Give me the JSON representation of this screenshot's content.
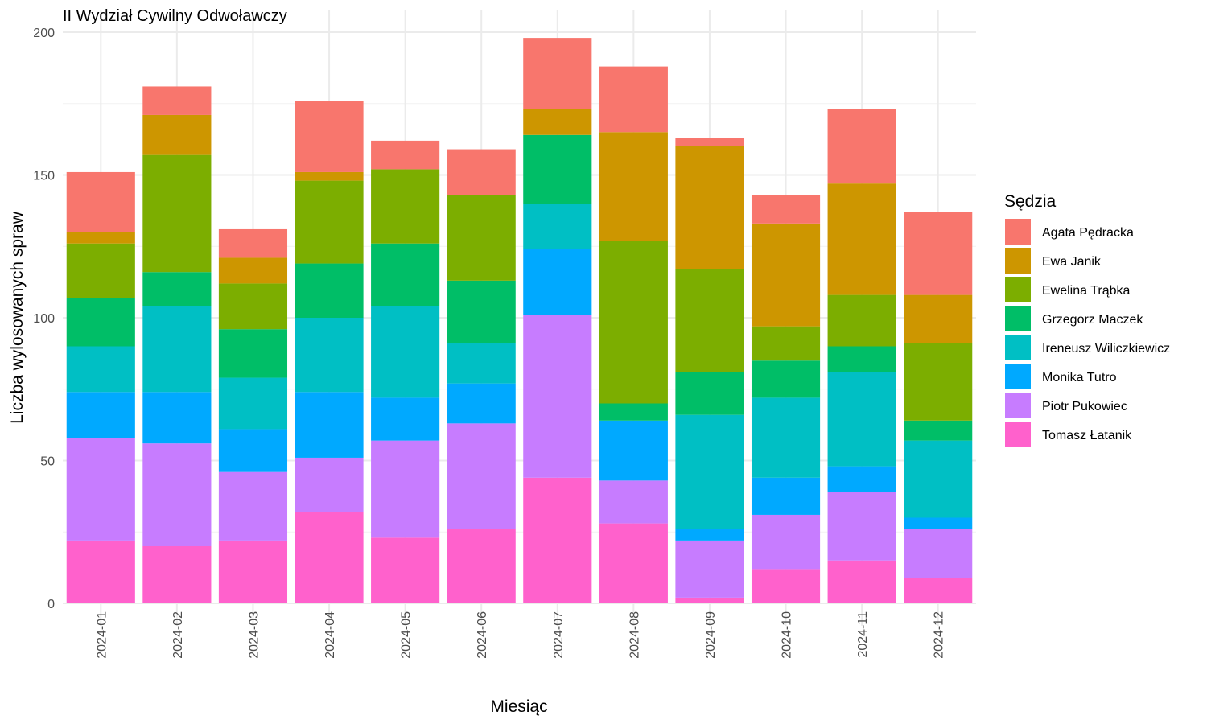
{
  "chart_data": {
    "type": "bar",
    "stacked": true,
    "title": "II Wydział Cywilny Odwoławczy",
    "xlabel": "Miesiąc",
    "ylabel": "Liczba wylosowanych spraw",
    "ylim": [
      0,
      200
    ],
    "yticks": [
      0,
      50,
      100,
      150,
      200
    ],
    "grid": true,
    "legend_title": "Sędzia",
    "legend_position": "right",
    "categories": [
      "2024-01",
      "2024-02",
      "2024-03",
      "2024-04",
      "2024-05",
      "2024-06",
      "2024-07",
      "2024-08",
      "2024-09",
      "2024-10",
      "2024-11",
      "2024-12"
    ],
    "series": [
      {
        "name": "Tomasz Łatanik",
        "color": "#FF61CC",
        "values": [
          22,
          20,
          22,
          32,
          23,
          26,
          44,
          28,
          2,
          12,
          15,
          9
        ]
      },
      {
        "name": "Piotr Pukowiec",
        "color": "#C77CFF",
        "values": [
          36,
          36,
          24,
          19,
          34,
          37,
          57,
          15,
          20,
          19,
          24,
          17
        ]
      },
      {
        "name": "Monika Tutro",
        "color": "#00A9FF",
        "values": [
          16,
          18,
          15,
          23,
          15,
          14,
          23,
          21,
          4,
          13,
          9,
          4
        ]
      },
      {
        "name": "Ireneusz Wiliczkiewicz",
        "color": "#00BFC4",
        "values": [
          16,
          30,
          18,
          26,
          32,
          14,
          16,
          0,
          40,
          28,
          33,
          27
        ]
      },
      {
        "name": "Grzegorz Maczek",
        "color": "#00BE67",
        "values": [
          17,
          12,
          17,
          19,
          22,
          22,
          24,
          6,
          15,
          13,
          9,
          7
        ]
      },
      {
        "name": "Ewelina Trąbka",
        "color": "#7CAE00",
        "values": [
          19,
          41,
          16,
          29,
          26,
          30,
          0,
          57,
          36,
          12,
          18,
          27
        ]
      },
      {
        "name": "Ewa Janik",
        "color": "#CD9600",
        "values": [
          4,
          14,
          9,
          3,
          0,
          0,
          9,
          38,
          43,
          36,
          39,
          17
        ]
      },
      {
        "name": "Agata Pędracka",
        "color": "#F8766D",
        "values": [
          21,
          10,
          10,
          25,
          10,
          16,
          25,
          23,
          3,
          10,
          26,
          29
        ]
      }
    ],
    "legend_order": [
      "Agata Pędracka",
      "Ewa Janik",
      "Ewelina Trąbka",
      "Grzegorz Maczek",
      "Ireneusz Wiliczkiewicz",
      "Monika Tutro",
      "Piotr Pukowiec",
      "Tomasz Łatanik"
    ]
  }
}
